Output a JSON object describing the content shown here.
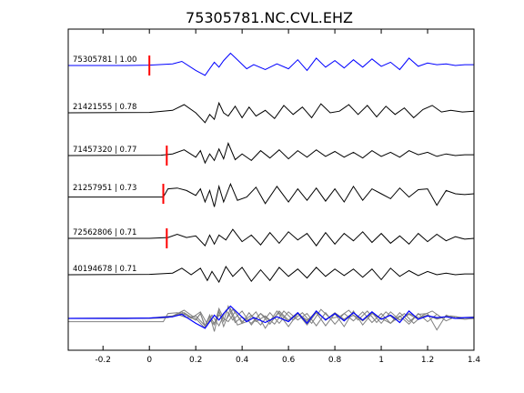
{
  "chart_data": {
    "type": "line",
    "title": "75305781.NC.CVL.EHZ",
    "xlabel": "",
    "ylabel": "",
    "xlim": [
      -0.35,
      1.4
    ],
    "xticks": [
      "-0.2",
      "0",
      "0.2",
      "0.4",
      "0.6",
      "0.8",
      "1",
      "1.2",
      "1.4"
    ],
    "xtick_values": [
      -0.2,
      0,
      0.2,
      0.4,
      0.6,
      0.8,
      1.0,
      1.2,
      1.4
    ],
    "grid": false,
    "colors": {
      "master": "#0000ff",
      "trace": "#000000",
      "overlay": "#808080",
      "pick": "#ff0000"
    },
    "traces": [
      {
        "event_id": "75305781",
        "cc": "1.00",
        "label": "75305781 | 1.00",
        "pick_x": 0.0,
        "x": [
          -0.35,
          -0.1,
          0.0,
          0.1,
          0.14,
          0.2,
          0.24,
          0.26,
          0.28,
          0.3,
          0.32,
          0.35,
          0.38,
          0.42,
          0.45,
          0.5,
          0.55,
          0.6,
          0.64,
          0.68,
          0.72,
          0.76,
          0.8,
          0.84,
          0.88,
          0.92,
          0.96,
          1.0,
          1.04,
          1.08,
          1.12,
          1.16,
          1.2,
          1.24,
          1.28,
          1.32,
          1.36,
          1.4
        ],
        "y": [
          0,
          0,
          0.02,
          0.1,
          0.25,
          -0.3,
          -0.6,
          -0.2,
          0.2,
          -0.1,
          0.3,
          0.75,
          0.35,
          -0.2,
          0.05,
          -0.25,
          0.1,
          -0.2,
          0.35,
          -0.3,
          0.45,
          -0.1,
          0.3,
          -0.15,
          0.35,
          -0.1,
          0.4,
          -0.05,
          0.2,
          -0.25,
          0.45,
          -0.05,
          0.15,
          0.05,
          0.1,
          0.0,
          0.05,
          0.05
        ]
      },
      {
        "event_id": "21421555",
        "cc": "0.78",
        "label": "21421555 | 0.78",
        "x": [
          -0.35,
          0.0,
          0.1,
          0.15,
          0.2,
          0.24,
          0.26,
          0.28,
          0.3,
          0.32,
          0.34,
          0.37,
          0.4,
          0.43,
          0.46,
          0.5,
          0.54,
          0.58,
          0.62,
          0.66,
          0.7,
          0.74,
          0.78,
          0.82,
          0.86,
          0.9,
          0.94,
          0.98,
          1.02,
          1.06,
          1.1,
          1.14,
          1.18,
          1.22,
          1.26,
          1.3,
          1.35,
          1.4
        ],
        "y": [
          0,
          0.02,
          0.15,
          0.5,
          0.0,
          -0.6,
          -0.1,
          -0.4,
          0.6,
          0.0,
          -0.2,
          0.4,
          -0.3,
          0.35,
          -0.2,
          0.15,
          -0.35,
          0.45,
          -0.1,
          0.35,
          -0.3,
          0.55,
          0.0,
          0.1,
          0.5,
          -0.1,
          0.45,
          -0.25,
          0.4,
          -0.1,
          0.3,
          -0.3,
          0.2,
          0.45,
          0.05,
          0.15,
          0.05,
          0.1
        ]
      },
      {
        "event_id": "71457320",
        "cc": "0.77",
        "label": "71457320 | 0.77",
        "pick_x": 0.075,
        "x": [
          -0.35,
          0.05,
          0.1,
          0.15,
          0.2,
          0.22,
          0.24,
          0.26,
          0.28,
          0.3,
          0.32,
          0.34,
          0.37,
          0.4,
          0.44,
          0.48,
          0.52,
          0.56,
          0.6,
          0.64,
          0.68,
          0.72,
          0.76,
          0.8,
          0.84,
          0.88,
          0.92,
          0.96,
          1.0,
          1.04,
          1.08,
          1.12,
          1.16,
          1.2,
          1.24,
          1.28,
          1.32,
          1.36,
          1.4
        ],
        "y": [
          0,
          0.02,
          0.1,
          0.35,
          -0.1,
          0.3,
          -0.45,
          0.1,
          -0.3,
          0.4,
          -0.2,
          0.75,
          -0.25,
          0.1,
          -0.3,
          0.3,
          -0.15,
          0.35,
          -0.2,
          0.3,
          -0.1,
          0.35,
          -0.05,
          0.25,
          -0.1,
          0.2,
          -0.15,
          0.3,
          -0.05,
          0.2,
          -0.1,
          0.3,
          0.05,
          0.2,
          -0.05,
          0.1,
          0.0,
          0.05,
          0.05
        ]
      },
      {
        "event_id": "21257951",
        "cc": "0.73",
        "label": "21257951 | 0.73",
        "pick_x": 0.06,
        "x": [
          -0.35,
          0.06,
          0.08,
          0.12,
          0.16,
          0.2,
          0.22,
          0.24,
          0.26,
          0.28,
          0.3,
          0.32,
          0.35,
          0.38,
          0.42,
          0.46,
          0.5,
          0.55,
          0.6,
          0.64,
          0.68,
          0.72,
          0.76,
          0.8,
          0.84,
          0.88,
          0.92,
          0.96,
          1.0,
          1.04,
          1.08,
          1.12,
          1.16,
          1.2,
          1.24,
          1.28,
          1.32,
          1.36,
          1.4
        ],
        "y": [
          -0.2,
          -0.2,
          0.3,
          0.35,
          0.2,
          -0.1,
          0.3,
          -0.5,
          0.2,
          -0.8,
          0.45,
          -0.5,
          0.6,
          -0.4,
          -0.2,
          0.4,
          -0.6,
          0.45,
          -0.5,
          0.3,
          -0.4,
          0.35,
          -0.45,
          0.3,
          -0.5,
          0.45,
          -0.4,
          0.3,
          0.0,
          -0.3,
          0.35,
          -0.2,
          0.25,
          0.3,
          -0.7,
          0.2,
          0.0,
          -0.05,
          0.0
        ]
      },
      {
        "event_id": "72562806",
        "cc": "0.71",
        "label": "72562806 | 0.71",
        "pick_x": 0.075,
        "x": [
          -0.35,
          0.0,
          0.08,
          0.12,
          0.16,
          0.2,
          0.24,
          0.26,
          0.28,
          0.3,
          0.33,
          0.36,
          0.4,
          0.44,
          0.48,
          0.52,
          0.56,
          0.6,
          0.64,
          0.68,
          0.72,
          0.76,
          0.8,
          0.84,
          0.88,
          0.92,
          0.96,
          1.0,
          1.04,
          1.08,
          1.12,
          1.16,
          1.2,
          1.24,
          1.28,
          1.32,
          1.36,
          1.4
        ],
        "y": [
          0,
          0.0,
          0.05,
          0.25,
          0.05,
          0.15,
          -0.45,
          0.2,
          -0.35,
          0.2,
          -0.1,
          0.55,
          -0.2,
          0.2,
          -0.4,
          0.35,
          -0.3,
          0.4,
          -0.1,
          0.3,
          -0.45,
          0.35,
          -0.35,
          0.3,
          -0.15,
          0.4,
          -0.25,
          0.3,
          -0.3,
          0.15,
          -0.35,
          0.3,
          -0.2,
          0.25,
          -0.15,
          0.1,
          -0.05,
          0.0
        ]
      },
      {
        "event_id": "40194678",
        "cc": "0.71",
        "label": "40194678 | 0.71",
        "x": [
          -0.35,
          0.0,
          0.1,
          0.14,
          0.18,
          0.22,
          0.25,
          0.27,
          0.3,
          0.33,
          0.36,
          0.4,
          0.44,
          0.48,
          0.52,
          0.56,
          0.6,
          0.64,
          0.68,
          0.72,
          0.76,
          0.8,
          0.84,
          0.88,
          0.92,
          0.96,
          1.0,
          1.04,
          1.08,
          1.12,
          1.16,
          1.2,
          1.24,
          1.28,
          1.32,
          1.36,
          1.4
        ],
        "y": [
          0,
          0.02,
          0.1,
          0.4,
          0.0,
          0.4,
          -0.35,
          0.2,
          -0.45,
          0.5,
          -0.1,
          0.45,
          -0.4,
          0.3,
          -0.35,
          0.45,
          -0.1,
          0.35,
          -0.2,
          0.45,
          -0.1,
          0.35,
          -0.05,
          0.35,
          -0.15,
          0.35,
          -0.3,
          0.4,
          -0.1,
          0.25,
          -0.05,
          0.2,
          0.0,
          0.1,
          0.0,
          0.05,
          0.05
        ]
      }
    ],
    "overlay_traces": [
      0,
      1,
      2,
      3,
      4,
      5
    ]
  }
}
